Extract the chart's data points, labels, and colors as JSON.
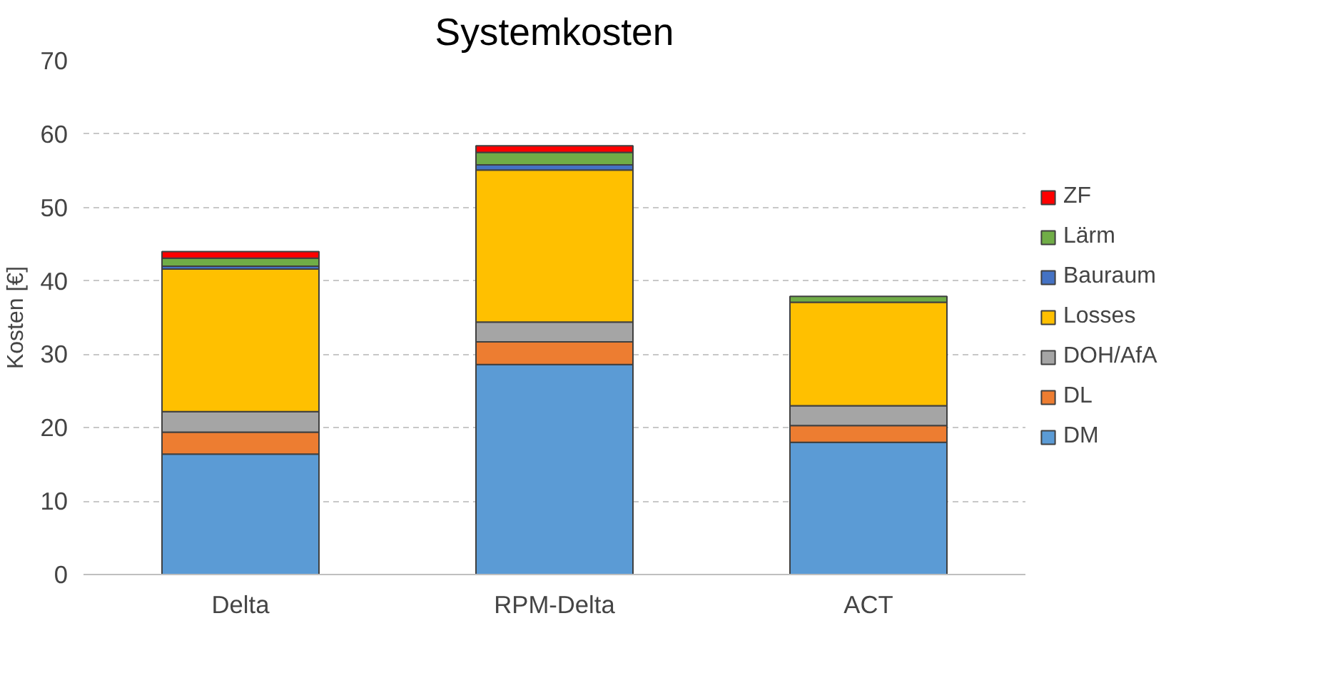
{
  "chart_data": {
    "type": "bar",
    "title": "Systemkosten",
    "ylabel": "Kosten [€]",
    "categories": [
      "Delta",
      "RPM-Delta",
      "ACT"
    ],
    "stacked": true,
    "ylim": [
      0,
      70
    ],
    "yticks": [
      0,
      10,
      20,
      30,
      40,
      50,
      60,
      70
    ],
    "grid": "y",
    "legend": "right",
    "series": [
      {
        "name": "DM",
        "color": "#5b9bd5",
        "values": [
          16.4,
          28.6,
          18.0
        ]
      },
      {
        "name": "DL",
        "color": "#ed7d31",
        "values": [
          3.0,
          3.1,
          2.3
        ]
      },
      {
        "name": "DOH/AfA",
        "color": "#a5a5a5",
        "values": [
          2.8,
          2.7,
          2.7
        ]
      },
      {
        "name": "Losses",
        "color": "#ffc000",
        "values": [
          19.4,
          20.7,
          14.1
        ]
      },
      {
        "name": "Bauraum",
        "color": "#4472c4",
        "values": [
          0.4,
          0.7,
          null
        ]
      },
      {
        "name": "Lärm",
        "color": "#70ad47",
        "values": [
          1.1,
          1.7,
          0.8
        ]
      },
      {
        "name": "ZF",
        "color": "#ff0000",
        "values": [
          0.9,
          0.9,
          null
        ]
      }
    ]
  }
}
